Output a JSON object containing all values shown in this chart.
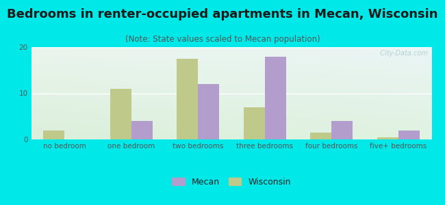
{
  "title": "Bedrooms in renter-occupied apartments in Mecan, Wisconsin",
  "subtitle": "(Note: State values scaled to Mecan population)",
  "categories": [
    "no bedroom",
    "one bedroom",
    "two bedrooms",
    "three bedrooms",
    "four bedrooms",
    "five+ bedrooms"
  ],
  "mecan_values": [
    0,
    4,
    12,
    18,
    4,
    2
  ],
  "wisconsin_values": [
    2,
    11,
    17.5,
    7,
    1.5,
    0.5
  ],
  "mecan_color": "#b39dcc",
  "wisconsin_color": "#bfca8a",
  "background_outer": "#00e8e8",
  "ylim": [
    0,
    20
  ],
  "yticks": [
    0,
    10,
    20
  ],
  "bar_width": 0.32,
  "legend_mecan": "Mecan",
  "legend_wisconsin": "Wisconsin",
  "title_fontsize": 13,
  "subtitle_fontsize": 8.5,
  "tick_fontsize": 7.5,
  "watermark": "  City-Data.com"
}
